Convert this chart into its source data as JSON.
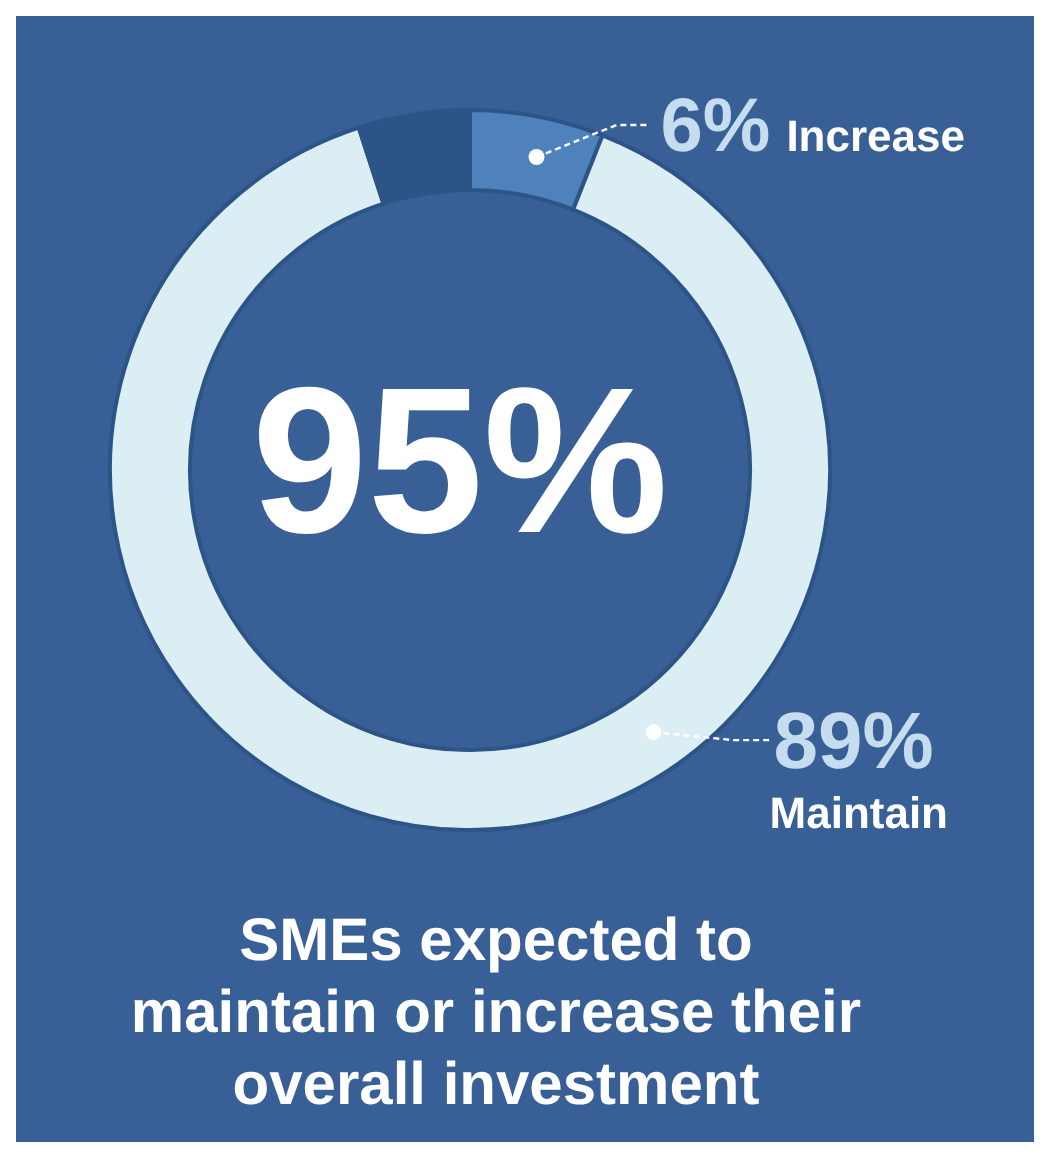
{
  "chart_data": {
    "type": "donut",
    "title": "SMEs expected to maintain or increase their overall investment",
    "categories": [
      "Increase",
      "Maintain",
      null
    ],
    "values": [
      6,
      89,
      5
    ],
    "colors": [
      "#4f81bd",
      "#dbeef4",
      "#2c5486"
    ],
    "value_labels": [
      "6%",
      "89%",
      null
    ],
    "annotations": [
      "95%"
    ]
  }
}
